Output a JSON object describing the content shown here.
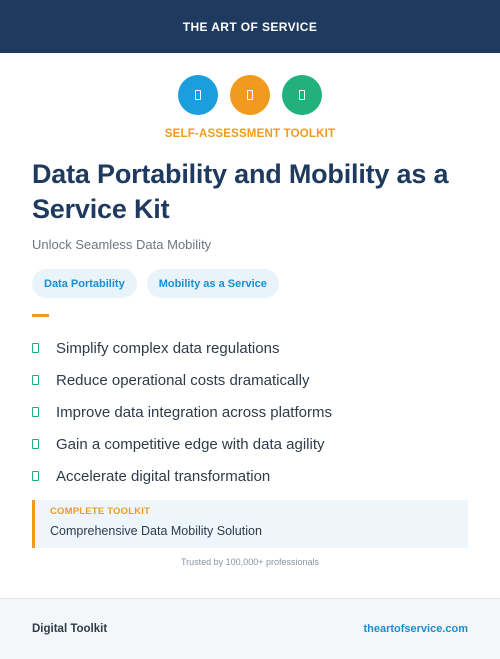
{
  "header": {
    "brand": "THE ART OF SERVICE"
  },
  "icons": [
    {
      "name": "doc-icon",
      "color": "#1a9fdc"
    },
    {
      "name": "doc-icon",
      "color": "#f19a1d"
    },
    {
      "name": "doc-icon",
      "color": "#22b07d"
    }
  ],
  "kicker": "SELF-ASSESSMENT TOOLKIT",
  "title": "Data Portability and Mobility as a Service Kit",
  "subtitle": "Unlock Seamless Data Mobility",
  "tags": [
    "Data Portability",
    "Mobility as a Service"
  ],
  "benefits": [
    "Simplify complex data regulations",
    "Reduce operational costs dramatically",
    "Improve data integration across platforms",
    "Gain a competitive edge with data agility",
    "Accelerate digital transformation"
  ],
  "callout": {
    "label": "COMPLETE TOOLKIT",
    "text": "Comprehensive Data Mobility Solution"
  },
  "trusted": "Trusted by 100,000+ professionals",
  "footer": {
    "left": "Digital Toolkit",
    "right": "theartofservice.com"
  },
  "colors": {
    "navy": "#1e3a5f",
    "accent_orange": "#f19a1d",
    "accent_blue": "#1a9fdc",
    "accent_green": "#22b07d"
  }
}
